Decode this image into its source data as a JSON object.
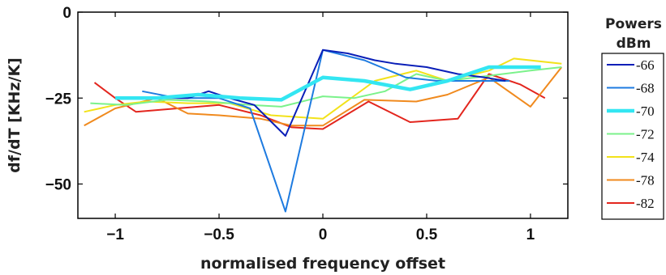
{
  "chart_data": {
    "type": "line",
    "xlabel": "normalised frequency offset",
    "ylabel": "df/dT [KHz/K]",
    "xlim": [
      -1.18,
      1.18
    ],
    "ylim": [
      -60,
      0
    ],
    "xticks": [
      -1,
      -0.5,
      0,
      0.5,
      1
    ],
    "xtick_labels": [
      "−1",
      "−0.5",
      "0",
      "0.5",
      "1"
    ],
    "yticks": [
      0,
      -25,
      -50
    ],
    "ytick_labels": [
      "0",
      "−25",
      "−50"
    ],
    "grid": false,
    "legend": {
      "title_line1": "Powers",
      "title_line2": "dBm",
      "placement": "right-outside"
    },
    "series": [
      {
        "name": "-66",
        "color": "#0a1fb8",
        "width": 2,
        "x": [
          -0.87,
          -0.7,
          -0.65,
          -0.55,
          -0.45,
          -0.33,
          -0.18,
          0.0,
          0.12,
          0.25,
          0.35,
          0.5,
          0.65,
          0.78,
          0.88
        ],
        "y": [
          -25,
          -25,
          -25,
          -23,
          -25,
          -27,
          -36,
          -11,
          -12,
          -14,
          -15,
          -16,
          -18,
          -19,
          -20
        ]
      },
      {
        "name": "-68",
        "color": "#1e7be0",
        "width": 2,
        "x": [
          -0.87,
          -0.7,
          -0.5,
          -0.35,
          -0.18,
          0.0,
          0.2,
          0.4,
          0.55,
          0.7,
          0.9
        ],
        "y": [
          -23,
          -25,
          -25,
          -28,
          -58,
          -11,
          -14,
          -19,
          -20,
          -20,
          -20
        ]
      },
      {
        "name": "-70",
        "color": "#33e6f2",
        "width": 4.5,
        "x": [
          -1.0,
          -0.8,
          -0.6,
          -0.4,
          -0.2,
          0.0,
          0.2,
          0.42,
          0.6,
          0.8,
          1.05
        ],
        "y": [
          -25,
          -25,
          -24,
          -25,
          -25.5,
          -19,
          -20,
          -22.5,
          -20,
          -16,
          -16
        ]
      },
      {
        "name": "-72",
        "color": "#7bf28b",
        "width": 2,
        "x": [
          -1.12,
          -0.95,
          -0.75,
          -0.55,
          -0.35,
          -0.2,
          0.0,
          0.15,
          0.3,
          0.45,
          0.6,
          0.8,
          1.0,
          1.15
        ],
        "y": [
          -26.5,
          -27,
          -25.5,
          -26,
          -27,
          -27.5,
          -24.5,
          -25,
          -23,
          -18,
          -20,
          -18.5,
          -17,
          -16
        ]
      },
      {
        "name": "-74",
        "color": "#f2e21a",
        "width": 2,
        "x": [
          -1.15,
          -1.0,
          -0.85,
          -0.65,
          -0.45,
          -0.25,
          0.0,
          0.25,
          0.45,
          0.6,
          0.8,
          0.92,
          1.15
        ],
        "y": [
          -29,
          -27,
          -26,
          -26.5,
          -26.5,
          -30,
          -31,
          -20,
          -17,
          -20,
          -17,
          -13.5,
          -15
        ]
      },
      {
        "name": "-78",
        "color": "#f08a1e",
        "width": 2,
        "x": [
          -1.15,
          -1.0,
          -0.8,
          -0.65,
          -0.5,
          -0.3,
          -0.15,
          0.0,
          0.2,
          0.45,
          0.6,
          0.8,
          1.0,
          1.15
        ],
        "y": [
          -33,
          -28,
          -25,
          -29.5,
          -30,
          -31,
          -33,
          -33,
          -25.5,
          -26,
          -24,
          -19,
          -27.5,
          -16
        ]
      },
      {
        "name": "-82",
        "color": "#e3261e",
        "width": 2,
        "x": [
          -1.1,
          -1.0,
          -0.9,
          -0.7,
          -0.5,
          -0.3,
          -0.15,
          0.0,
          0.22,
          0.42,
          0.65,
          0.8,
          0.95,
          1.07
        ],
        "y": [
          -20.5,
          -25,
          -29,
          -28,
          -27,
          -30,
          -33.5,
          -34,
          -26,
          -32,
          -31,
          -18,
          -21,
          -25
        ]
      }
    ]
  }
}
